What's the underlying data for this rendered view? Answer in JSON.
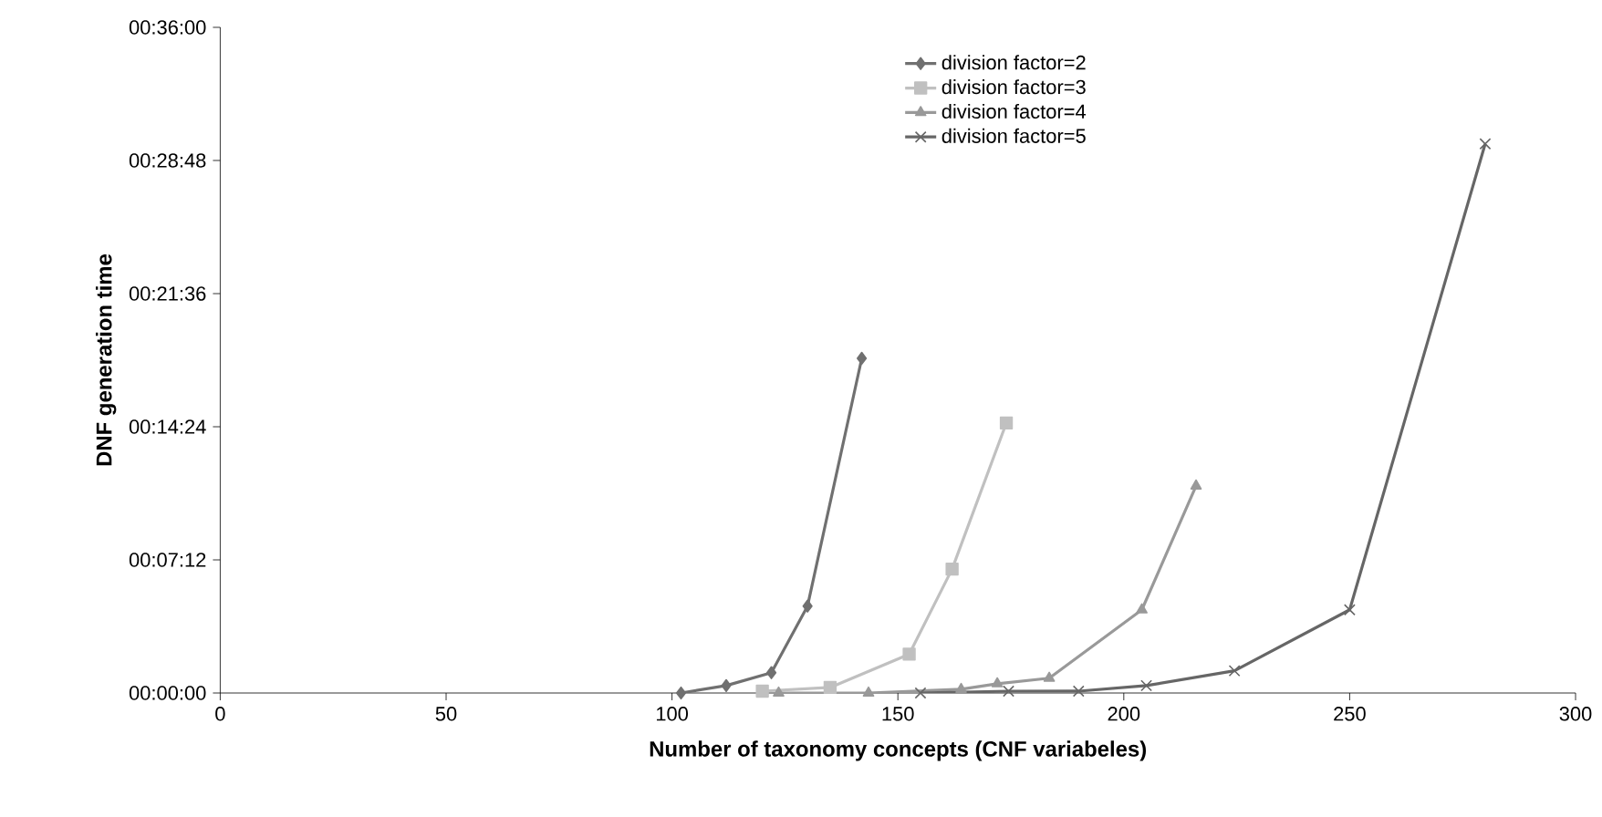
{
  "chart_data": {
    "type": "line",
    "xlabel": "Number of taxonomy concepts (CNF variabeles)",
    "ylabel": "DNF generation time",
    "xlim": [
      0,
      300
    ],
    "xticks": [
      0,
      50,
      100,
      150,
      200,
      250,
      300
    ],
    "ylim": [
      0,
      36
    ],
    "yticks": [
      {
        "value": 0,
        "label": "00:00:00"
      },
      {
        "value": 7.2,
        "label": "00:07:12"
      },
      {
        "value": 14.4,
        "label": "00:14:24"
      },
      {
        "value": 21.6,
        "label": "00:21:36"
      },
      {
        "value": 28.8,
        "label": "00:28:48"
      },
      {
        "value": 36,
        "label": "00:36:00"
      }
    ],
    "grid": false,
    "legend": "top right",
    "line_style": "solid",
    "series": [
      {
        "name": "division factor=2",
        "color": "#707070",
        "marker": "diamond",
        "x": [
          102,
          112,
          122,
          130,
          142
        ],
        "values": [
          0,
          0.4,
          1.1,
          4.7,
          18.1
        ]
      },
      {
        "name": "division factor=3",
        "color": "#c0c0c0",
        "marker": "square",
        "x": [
          120,
          135,
          152.5,
          162,
          174
        ],
        "values": [
          0.1,
          0.3,
          2.1,
          6.7,
          14.6
        ]
      },
      {
        "name": "division factor=4",
        "color": "#999999",
        "marker": "triangle",
        "x": [
          123.6,
          143.5,
          164,
          172,
          183.5,
          204,
          216
        ],
        "values": [
          0,
          0,
          0.2,
          0.5,
          0.8,
          4.5,
          11.2
        ]
      },
      {
        "name": "division factor=5",
        "color": "#666666",
        "marker": "cross",
        "x": [
          155,
          174.5,
          190,
          205,
          224.5,
          250,
          280
        ],
        "values": [
          0,
          0.1,
          0.1,
          0.4,
          1.2,
          4.5,
          29.7
        ]
      }
    ]
  }
}
